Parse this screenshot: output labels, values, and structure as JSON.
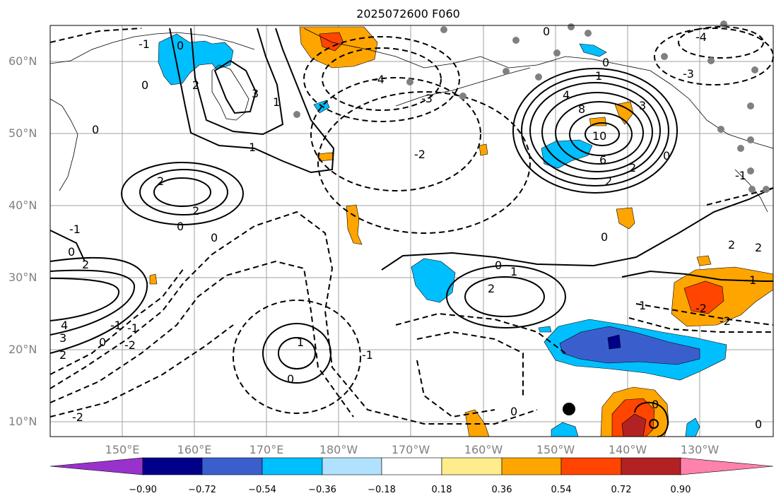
{
  "title": "2025072600 F060",
  "lat_labels": [
    "60°N",
    "50°N",
    "40°N",
    "30°N",
    "20°N",
    "10°N"
  ],
  "lon_labels": [
    "150°E",
    "160°E",
    "170°E",
    "180°W",
    "170°W",
    "160°W",
    "150°W",
    "140°W",
    "130°W"
  ],
  "colorbar": {
    "tick_labels": [
      "−0.90",
      "−0.72",
      "−0.54",
      "−0.36",
      "−0.18",
      "0.18",
      "0.36",
      "0.54",
      "0.72",
      "0.90"
    ],
    "colors": [
      "#9932cc",
      "#00008b",
      "#3a5fcd",
      "#00bfff",
      "#b0e2ff",
      "#ffffff",
      "#ffec8b",
      "#ffa500",
      "#ff4500",
      "#b22222",
      "#ff82ab"
    ]
  },
  "contour_labels": [
    "0",
    "1",
    "2",
    "3",
    "4",
    "6",
    "8",
    "10",
    "-1",
    "-2",
    "-3",
    "-4"
  ],
  "colors": {
    "orange": "#ffa500",
    "red_orange": "#ff4500",
    "dark_red": "#b22222",
    "light_blue": "#00bfff",
    "blue": "#3a5fcd",
    "navy": "#00008b"
  }
}
